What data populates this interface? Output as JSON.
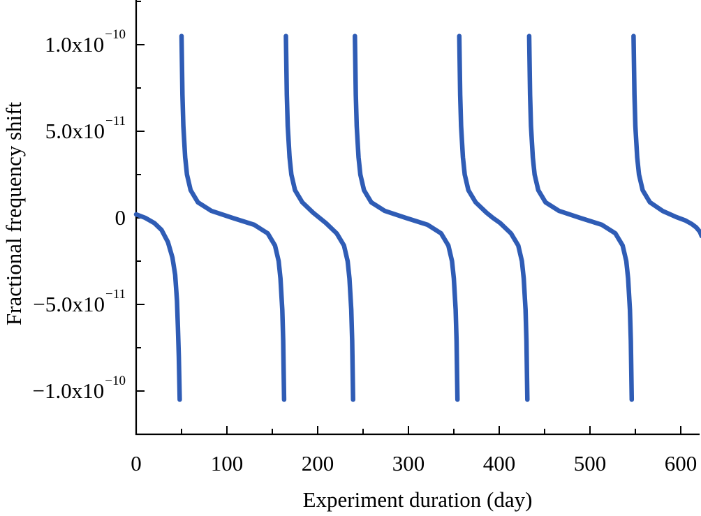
{
  "chart_data": {
    "type": "line",
    "title": "",
    "xlabel": "Experiment duration (day)",
    "ylabel": "Fractional frequency shift",
    "xlim": [
      0,
      623
    ],
    "ylim": [
      -1.25e-10,
      1.26e-10
    ],
    "y_unit_multiplier": 1e-11,
    "grid": false,
    "legend": "none",
    "line_color": "#2f5cb5",
    "x_ticks": [
      {
        "value": 0,
        "label": "0"
      },
      {
        "value": 100,
        "label": "100"
      },
      {
        "value": 200,
        "label": "200"
      },
      {
        "value": 300,
        "label": "300"
      },
      {
        "value": 400,
        "label": "400"
      },
      {
        "value": 500,
        "label": "500"
      },
      {
        "value": 600,
        "label": "600"
      }
    ],
    "y_ticks": [
      {
        "value": 10,
        "base": "1.0x10",
        "exp": "−10"
      },
      {
        "value": 5,
        "base": "5.0x10",
        "exp": "−11"
      },
      {
        "value": 0,
        "base": "0",
        "exp": ""
      },
      {
        "value": -5,
        "base": "−5.0x10",
        "exp": "−11"
      },
      {
        "value": -10,
        "base": "−1.0x10",
        "exp": "−10"
      }
    ],
    "series": [
      {
        "name": "frequency shift",
        "segments": [
          [
            [
              0,
              0.2
            ],
            [
              10,
              0
            ],
            [
              20,
              -0.3
            ],
            [
              28,
              -0.7
            ],
            [
              35,
              -1.4
            ],
            [
              40,
              -2.3
            ],
            [
              43,
              -3.3
            ],
            [
              45,
              -4.8
            ],
            [
              46,
              -6.3
            ],
            [
              47,
              -8
            ],
            [
              48,
              -10.5
            ]
          ],
          [
            [
              50,
              10.5
            ],
            [
              51,
              7.1
            ],
            [
              52,
              5.3
            ],
            [
              54,
              3.5
            ],
            [
              56,
              2.5
            ],
            [
              60,
              1.6
            ],
            [
              68,
              0.9
            ],
            [
              83,
              0.4
            ],
            [
              106,
              0
            ],
            [
              130,
              -0.4
            ],
            [
              145,
              -0.9
            ],
            [
              153,
              -1.6
            ],
            [
              157,
              -2.5
            ],
            [
              159,
              -3.5
            ],
            [
              161,
              -5.3
            ],
            [
              162,
              -7.1
            ],
            [
              163,
              -10.5
            ]
          ],
          [
            [
              165,
              10.5
            ],
            [
              166,
              7.1
            ],
            [
              167,
              5.3
            ],
            [
              169,
              3.5
            ],
            [
              171,
              2.5
            ],
            [
              175,
              1.6
            ],
            [
              183,
              0.9
            ],
            [
              195,
              0.3
            ],
            [
              202,
              0
            ],
            [
              209,
              -0.3
            ],
            [
              221,
              -0.9
            ],
            [
              229,
              -1.6
            ],
            [
              233,
              -2.5
            ],
            [
              235,
              -3.5
            ],
            [
              237,
              -5.3
            ],
            [
              238,
              -7.1
            ],
            [
              239,
              -10.5
            ]
          ],
          [
            [
              241,
              10.5
            ],
            [
              242,
              7.1
            ],
            [
              243,
              5.3
            ],
            [
              245,
              3.5
            ],
            [
              247,
              2.5
            ],
            [
              251,
              1.6
            ],
            [
              259,
              0.9
            ],
            [
              274,
              0.4
            ],
            [
              297,
              0
            ],
            [
              321,
              -0.4
            ],
            [
              336,
              -0.9
            ],
            [
              344,
              -1.6
            ],
            [
              348,
              -2.5
            ],
            [
              350,
              -3.5
            ],
            [
              352,
              -5.3
            ],
            [
              353,
              -7.1
            ],
            [
              354,
              -10.5
            ]
          ],
          [
            [
              356,
              10.5
            ],
            [
              357,
              7.1
            ],
            [
              358,
              5.3
            ],
            [
              360,
              3.5
            ],
            [
              362,
              2.5
            ],
            [
              366,
              1.6
            ],
            [
              374,
              0.9
            ],
            [
              386,
              0.3
            ],
            [
              393,
              0
            ],
            [
              401,
              -0.3
            ],
            [
              413,
              -0.9
            ],
            [
              421,
              -1.6
            ],
            [
              425,
              -2.5
            ],
            [
              427,
              -3.5
            ],
            [
              429,
              -5.3
            ],
            [
              430,
              -7.1
            ],
            [
              431,
              -10.5
            ]
          ],
          [
            [
              433,
              10.5
            ],
            [
              434,
              7.1
            ],
            [
              435,
              5.3
            ],
            [
              437,
              3.5
            ],
            [
              439,
              2.5
            ],
            [
              443,
              1.6
            ],
            [
              451,
              0.9
            ],
            [
              466,
              0.4
            ],
            [
              489,
              0
            ],
            [
              513,
              -0.4
            ],
            [
              528,
              -0.9
            ],
            [
              536,
              -1.6
            ],
            [
              540,
              -2.5
            ],
            [
              542,
              -3.5
            ],
            [
              544,
              -5.3
            ],
            [
              545,
              -7.1
            ],
            [
              546,
              -10.5
            ]
          ],
          [
            [
              548,
              10.5
            ],
            [
              549,
              7.1
            ],
            [
              550,
              5.3
            ],
            [
              552,
              3.5
            ],
            [
              554,
              2.5
            ],
            [
              558,
              1.6
            ],
            [
              566,
              0.9
            ],
            [
              580,
              0.4
            ],
            [
              595,
              0.05
            ],
            [
              605,
              -0.15
            ],
            [
              612,
              -0.35
            ],
            [
              617,
              -0.55
            ],
            [
              621,
              -0.8
            ],
            [
              623,
              -1.05
            ]
          ]
        ]
      }
    ]
  }
}
